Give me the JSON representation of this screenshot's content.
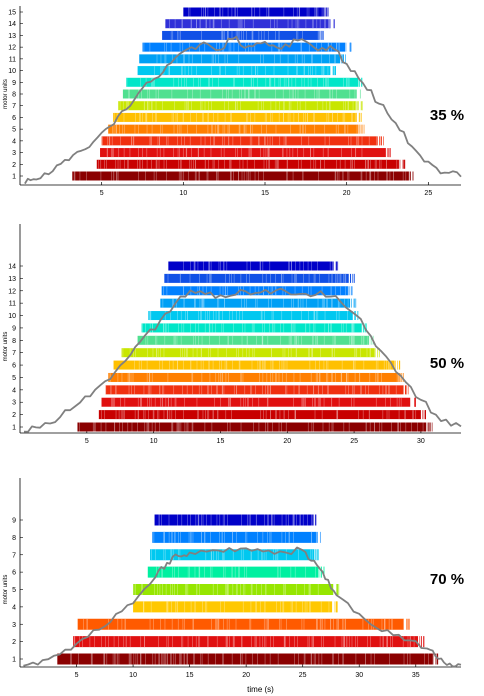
{
  "chart_data": [
    {
      "type": "raster",
      "annotation": "35 %",
      "ylabel": "motor units",
      "xlim": [
        0,
        27
      ],
      "xticks": [
        5,
        10,
        15,
        20,
        25
      ],
      "units": [
        {
          "id": 1,
          "start": 3.2,
          "end": 23.8,
          "color": "#8b0000"
        },
        {
          "id": 2,
          "start": 4.7,
          "end": 23.2,
          "color": "#c80000"
        },
        {
          "id": 3,
          "start": 4.9,
          "end": 22.4,
          "color": "#e01010"
        },
        {
          "id": 4,
          "start": 5.0,
          "end": 21.9,
          "color": "#f03010"
        },
        {
          "id": 5,
          "start": 5.4,
          "end": 20.7,
          "color": "#ff7f00"
        },
        {
          "id": 6,
          "start": 5.7,
          "end": 20.6,
          "color": "#ffc000"
        },
        {
          "id": 7,
          "start": 6.0,
          "end": 20.6,
          "color": "#c8e600"
        },
        {
          "id": 8,
          "start": 6.3,
          "end": 20.5,
          "color": "#50e090"
        },
        {
          "id": 9,
          "start": 6.5,
          "end": 20.7,
          "color": "#00e6c8"
        },
        {
          "id": 10,
          "start": 7.2,
          "end": 19.0,
          "color": "#00c8f0"
        },
        {
          "id": 11,
          "start": 7.3,
          "end": 19.6,
          "color": "#00a0f5"
        },
        {
          "id": 12,
          "start": 7.5,
          "end": 19.9,
          "color": "#0080ff"
        },
        {
          "id": 13,
          "start": 8.7,
          "end": 18.3,
          "color": "#1050e6"
        },
        {
          "id": 14,
          "start": 8.9,
          "end": 18.9,
          "color": "#3030d8"
        },
        {
          "id": 15,
          "start": 10.0,
          "end": 18.6,
          "color": "#0000c8"
        }
      ],
      "force_trace": {
        "color": "#808080",
        "x": [
          0.3,
          1,
          2,
          3,
          4,
          5,
          6,
          7,
          8,
          9,
          10,
          11,
          12,
          13,
          14,
          15,
          16,
          17,
          18,
          19,
          20,
          21,
          22,
          23,
          24,
          25,
          26,
          27
        ],
        "y": [
          0.1,
          0.4,
          1.0,
          1.8,
          2.6,
          3.8,
          5.0,
          6.2,
          7.5,
          8.7,
          9.7,
          10.2,
          9.8,
          10.6,
          10.1,
          10.4,
          9.9,
          10.5,
          10.0,
          10.1,
          8.8,
          7.4,
          5.9,
          4.5,
          2.8,
          1.7,
          0.9,
          0.6
        ]
      }
    },
    {
      "type": "raster",
      "annotation": "50 %",
      "ylabel": "motor units",
      "xlim": [
        0,
        33
      ],
      "xticks": [
        5,
        10,
        15,
        20,
        25,
        30
      ],
      "units": [
        {
          "id": 1,
          "start": 4.3,
          "end": 30.4,
          "color": "#8b0000"
        },
        {
          "id": 2,
          "start": 5.9,
          "end": 30.0,
          "color": "#c80000"
        },
        {
          "id": 3,
          "start": 6.1,
          "end": 29.2,
          "color": "#e01010"
        },
        {
          "id": 4,
          "start": 6.4,
          "end": 28.7,
          "color": "#f03010"
        },
        {
          "id": 5,
          "start": 6.6,
          "end": 28.3,
          "color": "#ff7f00"
        },
        {
          "id": 6,
          "start": 7.0,
          "end": 28.0,
          "color": "#ffc000"
        },
        {
          "id": 7,
          "start": 7.6,
          "end": 26.5,
          "color": "#c8e600"
        },
        {
          "id": 8,
          "start": 8.8,
          "end": 26.0,
          "color": "#50e090"
        },
        {
          "id": 9,
          "start": 9.1,
          "end": 25.6,
          "color": "#00e6c8"
        },
        {
          "id": 10,
          "start": 9.6,
          "end": 24.9,
          "color": "#00c8f0"
        },
        {
          "id": 11,
          "start": 10.5,
          "end": 24.7,
          "color": "#00a0f5"
        },
        {
          "id": 12,
          "start": 10.6,
          "end": 24.5,
          "color": "#0080ff"
        },
        {
          "id": 13,
          "start": 10.8,
          "end": 24.6,
          "color": "#1050e6"
        },
        {
          "id": 14,
          "start": 11.1,
          "end": 23.4,
          "color": "#0000c8"
        }
      ],
      "force_trace": {
        "color": "#808080",
        "x": [
          0.3,
          1.5,
          3,
          4.5,
          6,
          7.5,
          9,
          10.5,
          12,
          13.5,
          15,
          16.5,
          18,
          19.5,
          21,
          22.5,
          24,
          25.5,
          27,
          28.5,
          30,
          31.5,
          33
        ],
        "y": [
          0.1,
          0.4,
          1.2,
          2.3,
          3.6,
          5.1,
          6.9,
          8.5,
          10.3,
          10.7,
          10.4,
          10.8,
          10.6,
          10.9,
          10.5,
          10.7,
          9.9,
          8.6,
          6.2,
          4.3,
          2.5,
          0.9,
          0.5
        ]
      }
    },
    {
      "type": "raster",
      "annotation": "70 %",
      "ylabel": "motor units",
      "xlabel": "time (s)",
      "xlim": [
        0,
        39
      ],
      "xticks": [
        5,
        10,
        15,
        20,
        25,
        30,
        35
      ],
      "units": [
        {
          "id": 1,
          "start": 3.3,
          "end": 36.5,
          "color": "#8b0000"
        },
        {
          "id": 2,
          "start": 4.7,
          "end": 35.2,
          "color": "#e01010"
        },
        {
          "id": 3,
          "start": 5.1,
          "end": 33.9,
          "color": "#ff5a00"
        },
        {
          "id": 4,
          "start": 10.0,
          "end": 27.6,
          "color": "#ffc800"
        },
        {
          "id": 5,
          "start": 10.0,
          "end": 27.7,
          "color": "#96e600"
        },
        {
          "id": 6,
          "start": 11.3,
          "end": 26.4,
          "color": "#00f0a0"
        },
        {
          "id": 7,
          "start": 11.5,
          "end": 26.0,
          "color": "#00c8f0"
        },
        {
          "id": 8,
          "start": 11.7,
          "end": 26.1,
          "color": "#0080ff"
        },
        {
          "id": 9,
          "start": 11.9,
          "end": 25.8,
          "color": "#0000c8"
        }
      ],
      "force_trace": {
        "color": "#808080",
        "x": [
          0.3,
          2,
          4,
          6,
          8,
          10,
          12,
          13,
          14,
          15,
          17,
          19,
          21,
          23,
          25,
          26,
          27,
          28,
          30,
          32,
          34,
          36,
          37,
          38,
          39
        ],
        "y": [
          0.1,
          0.6,
          1.5,
          2.6,
          3.9,
          5.5,
          7.8,
          9.0,
          9.6,
          9.9,
          10.1,
          10.0,
          10.2,
          10.0,
          10.1,
          9.2,
          7.6,
          6.2,
          4.6,
          3.1,
          2.3,
          1.6,
          0.7,
          0.3,
          0.2
        ]
      }
    }
  ]
}
